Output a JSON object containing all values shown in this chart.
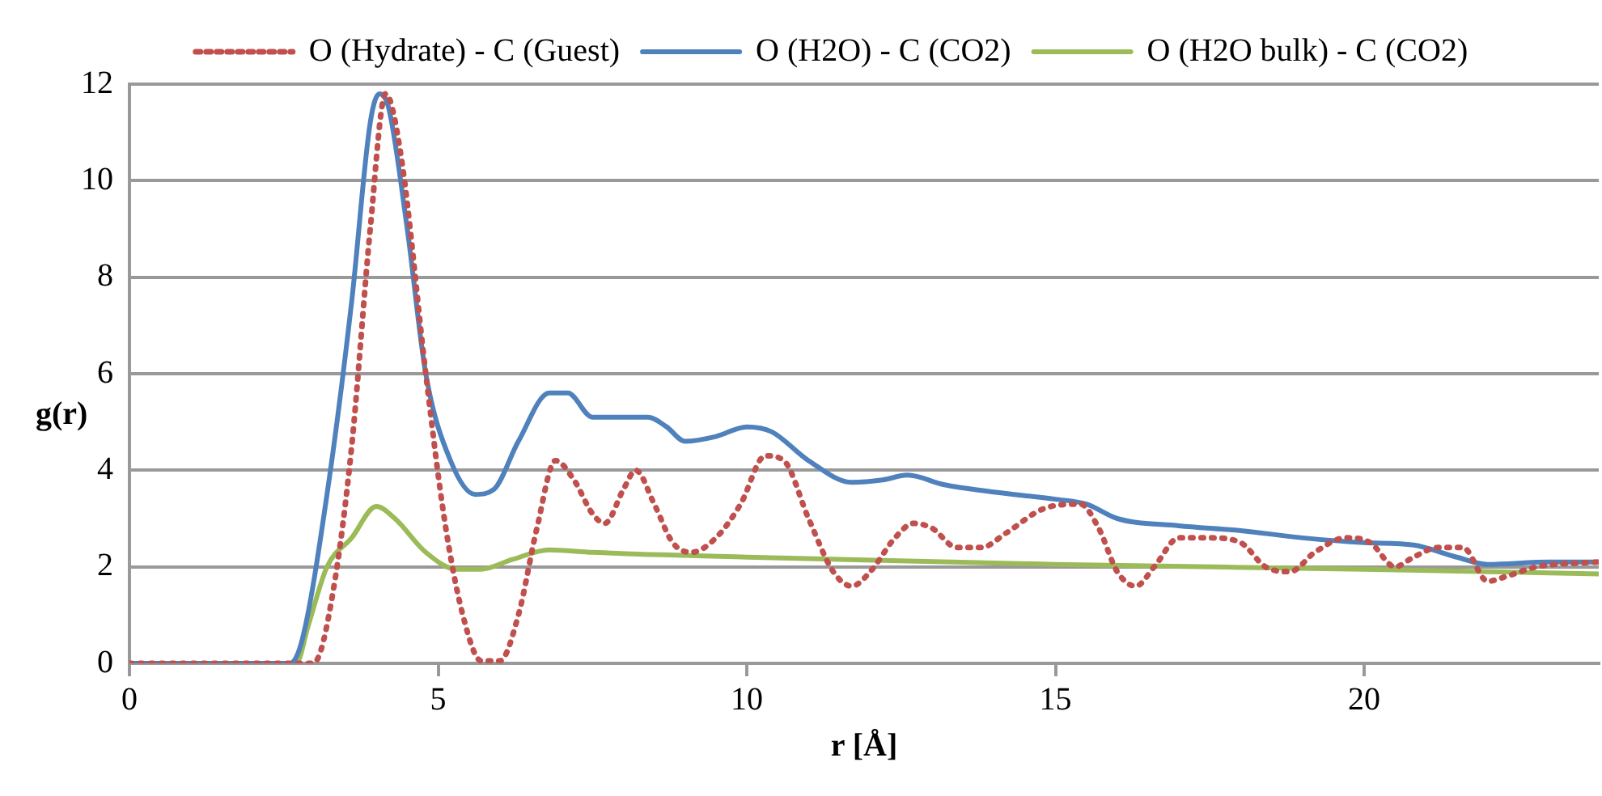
{
  "chart_data": {
    "type": "line",
    "xlabel": "r [Å]",
    "ylabel": "g(r)",
    "xlim": [
      0,
      23.8
    ],
    "xticks": [
      0,
      5,
      10,
      15,
      20
    ],
    "ylim": [
      0,
      12
    ],
    "yticks": [
      0,
      2,
      4,
      6,
      8,
      10,
      12
    ],
    "grid": "y",
    "legend": "top",
    "marker": "none",
    "series": [
      {
        "name": "O (Hydrate) - C (Guest)",
        "color": "#c0504d",
        "line_style": "dotted",
        "x": [
          0,
          2.9,
          3.0,
          3.3,
          3.6,
          3.9,
          4.15,
          4.4,
          4.8,
          5.1,
          5.4,
          5.7,
          6.0,
          6.3,
          6.6,
          6.9,
          7.2,
          7.5,
          7.7,
          8.0,
          8.2,
          8.5,
          8.8,
          9.1,
          9.5,
          9.9,
          10.3,
          10.6,
          11.0,
          11.4,
          11.7,
          12.0,
          12.4,
          12.7,
          13.0,
          13.4,
          13.8,
          14.2,
          14.8,
          15.4,
          15.7,
          16.0,
          16.3,
          16.6,
          17.0,
          17.5,
          18.0,
          18.4,
          18.8,
          19.2,
          19.7,
          20.1,
          20.5,
          20.8,
          21.2,
          21.6,
          22.0,
          22.3,
          22.8,
          23.8
        ],
        "values": [
          0,
          0,
          0.02,
          1.5,
          4.5,
          9,
          11.8,
          10.5,
          6,
          3,
          1,
          0.05,
          0.05,
          1,
          2.8,
          4.2,
          3.8,
          3.1,
          2.9,
          3.6,
          4.0,
          3.3,
          2.5,
          2.3,
          2.6,
          3.3,
          4.3,
          4.2,
          3.0,
          1.9,
          1.6,
          1.9,
          2.6,
          2.9,
          2.8,
          2.4,
          2.4,
          2.7,
          3.2,
          3.3,
          2.8,
          1.9,
          1.6,
          2.0,
          2.6,
          2.6,
          2.5,
          2.0,
          1.9,
          2.3,
          2.6,
          2.5,
          2.0,
          2.2,
          2.4,
          2.4,
          1.7,
          1.8,
          2.0,
          2.1
        ]
      },
      {
        "name": "O (H2O) - C (CO2)",
        "color": "#4f81bd",
        "line_style": "solid",
        "x": [
          0,
          2.6,
          2.8,
          3.2,
          3.6,
          3.9,
          4.05,
          4.2,
          4.5,
          4.8,
          5.2,
          5.6,
          5.9,
          6.3,
          6.8,
          7.1,
          7.5,
          8.0,
          8.4,
          8.7,
          9.0,
          9.5,
          10.0,
          10.4,
          11.0,
          11.7,
          12.2,
          12.6,
          13.2,
          14,
          15,
          15.5,
          16,
          17,
          18,
          19,
          20,
          20.8,
          21.5,
          22,
          23,
          23.8
        ],
        "values": [
          0,
          0,
          0.5,
          3.5,
          7.5,
          11.2,
          11.8,
          11.5,
          9,
          6,
          4.2,
          3.5,
          3.6,
          4.6,
          5.6,
          5.6,
          5.1,
          5.1,
          5.1,
          4.9,
          4.6,
          4.7,
          4.9,
          4.8,
          4.2,
          3.75,
          3.8,
          3.9,
          3.7,
          3.55,
          3.4,
          3.3,
          3.0,
          2.85,
          2.75,
          2.6,
          2.5,
          2.45,
          2.2,
          2.05,
          2.1,
          2.1
        ]
      },
      {
        "name": "O (H2O bulk) - C (CO2)",
        "color": "#9bbb59",
        "line_style": "solid",
        "x": [
          0,
          2.7,
          2.9,
          3.2,
          3.6,
          4.0,
          4.3,
          4.8,
          5.3,
          5.7,
          6.2,
          6.8,
          7.5,
          10,
          15,
          20,
          23.8
        ],
        "values": [
          0,
          0,
          0.8,
          2.0,
          2.6,
          3.25,
          3.0,
          2.3,
          1.95,
          1.95,
          2.15,
          2.35,
          2.3,
          2.2,
          2.05,
          1.95,
          1.85
        ]
      }
    ]
  }
}
